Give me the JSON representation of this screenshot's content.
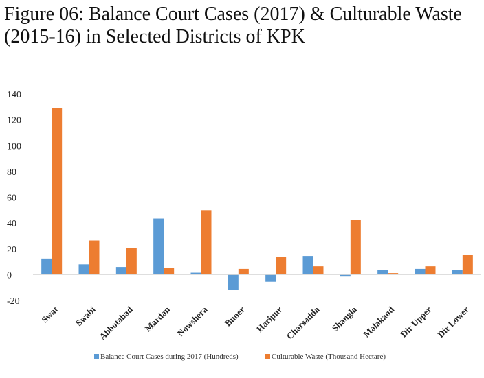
{
  "chart_data": {
    "type": "bar",
    "title": "Figure 06: Balance Court Cases (2017) & Culturable Waste (2015-16) in Selected Districts of KPK",
    "categories": [
      "Swat",
      "Swabi",
      "Abbotabad",
      "Mardan",
      "Nowshera",
      "Buner",
      "Haripur",
      "Charsadda",
      "Shangla",
      "Malakand",
      "Dir Upper",
      "Dir Lower"
    ],
    "series": [
      {
        "name": "Balance Court Cases during 2017 (Hundreds)",
        "color": "#5B9BD5",
        "values": [
          12.5,
          8,
          6,
          43.5,
          1.5,
          -11.5,
          -5.5,
          14.5,
          -1.5,
          3.8,
          4.5,
          3.8
        ]
      },
      {
        "name": "Culturable Waste (Thousand Hectare)",
        "color": "#ED7D31",
        "values": [
          129,
          26.5,
          20.5,
          5.5,
          50,
          4.5,
          14,
          6.5,
          42.5,
          1.2,
          6.5,
          15.5
        ]
      }
    ],
    "ylim": [
      -20,
      140
    ],
    "yticks": [
      -20,
      0,
      20,
      40,
      60,
      80,
      100,
      120,
      140
    ],
    "grid": false,
    "legend_position": "bottom"
  }
}
